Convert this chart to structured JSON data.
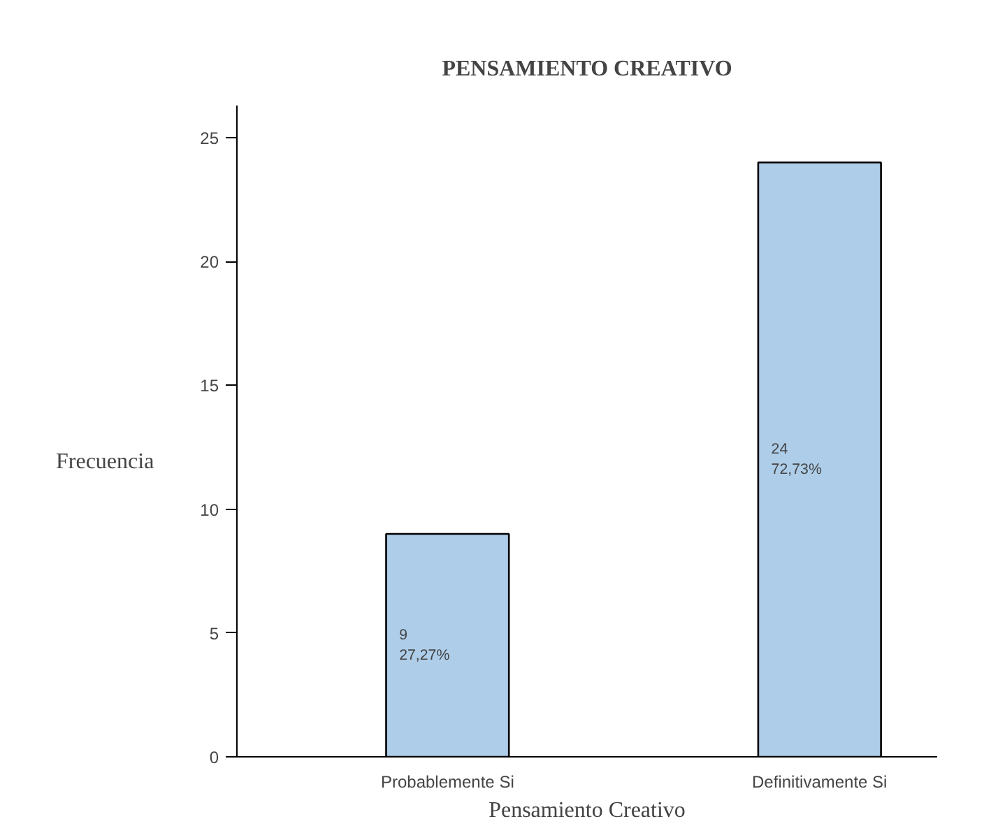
{
  "chart_data": {
    "type": "bar",
    "title": "PENSAMIENTO CREATIVO",
    "xlabel": "Pensamiento Creativo",
    "ylabel": "Frecuencia",
    "categories": [
      "Probablemente Si",
      "Definitivamente Si"
    ],
    "values": [
      9,
      24
    ],
    "color": "#aecde9",
    "value_labels": [
      "9\n27,27%",
      "24\n72,73%"
    ],
    "ylim": [
      0,
      26.3
    ],
    "yticks": [
      0,
      5,
      10,
      15,
      20,
      25
    ],
    "grid": false
  }
}
